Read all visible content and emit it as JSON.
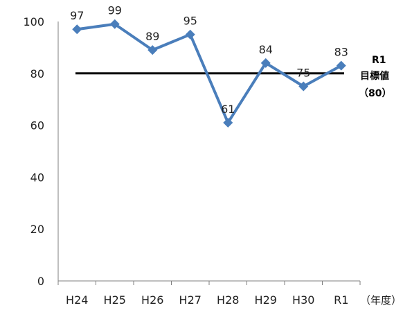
{
  "chart_data": {
    "type": "line",
    "categories": [
      "H24",
      "H25",
      "H26",
      "H27",
      "H28",
      "H29",
      "H30",
      "R1"
    ],
    "series": [
      {
        "values": [
          97,
          99,
          89,
          95,
          61,
          84,
          75,
          83
        ]
      }
    ],
    "ylim": [
      0,
      100
    ],
    "yticks": [
      0,
      20,
      40,
      60,
      80,
      100
    ],
    "x_unit": "（年度）",
    "target": {
      "value": 80,
      "label_lines": [
        "R1",
        "目標値",
        "（80）"
      ]
    },
    "grid": false,
    "legend": "none",
    "colors": {
      "series": "#4a7ebb",
      "target": "#000000",
      "axis": "#7f7f7f"
    }
  }
}
